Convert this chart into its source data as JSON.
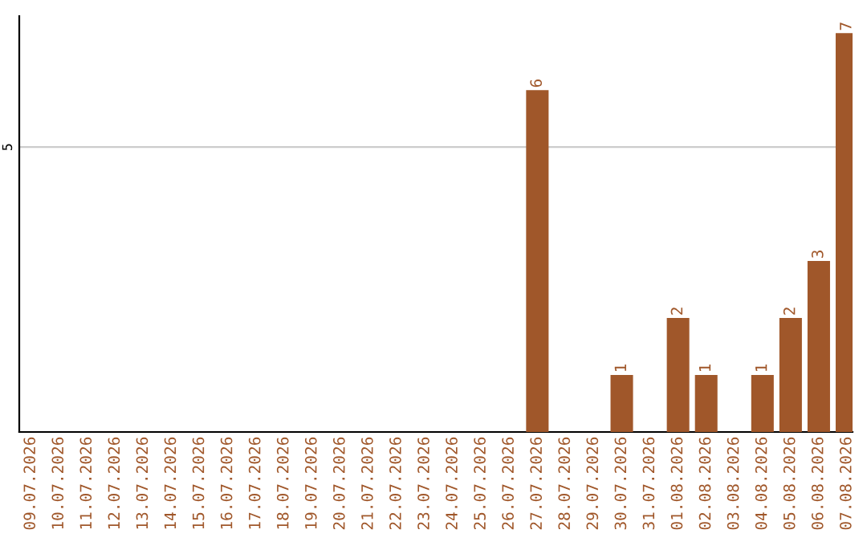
{
  "chart_data": {
    "type": "bar",
    "categories": [
      "09.07.2026",
      "10.07.2026",
      "11.07.2026",
      "12.07.2026",
      "13.07.2026",
      "14.07.2026",
      "15.07.2026",
      "16.07.2026",
      "17.07.2026",
      "18.07.2026",
      "19.07.2026",
      "20.07.2026",
      "21.07.2026",
      "22.07.2026",
      "23.07.2026",
      "24.07.2026",
      "25.07.2026",
      "26.07.2026",
      "27.07.2026",
      "28.07.2026",
      "29.07.2026",
      "30.07.2026",
      "31.07.2026",
      "01.08.2026",
      "02.08.2026",
      "03.08.2026",
      "04.08.2026",
      "05.08.2026",
      "06.08.2026",
      "07.08.2026"
    ],
    "values": [
      null,
      null,
      null,
      null,
      null,
      null,
      null,
      null,
      null,
      null,
      null,
      null,
      null,
      null,
      null,
      null,
      null,
      null,
      6,
      null,
      null,
      1,
      null,
      2,
      1,
      null,
      1,
      2,
      3,
      7
    ],
    "data_labels": true,
    "color": "#a0572a",
    "ylim": [
      0,
      7.3
    ],
    "yticks": [
      5
    ],
    "grid": "y"
  }
}
